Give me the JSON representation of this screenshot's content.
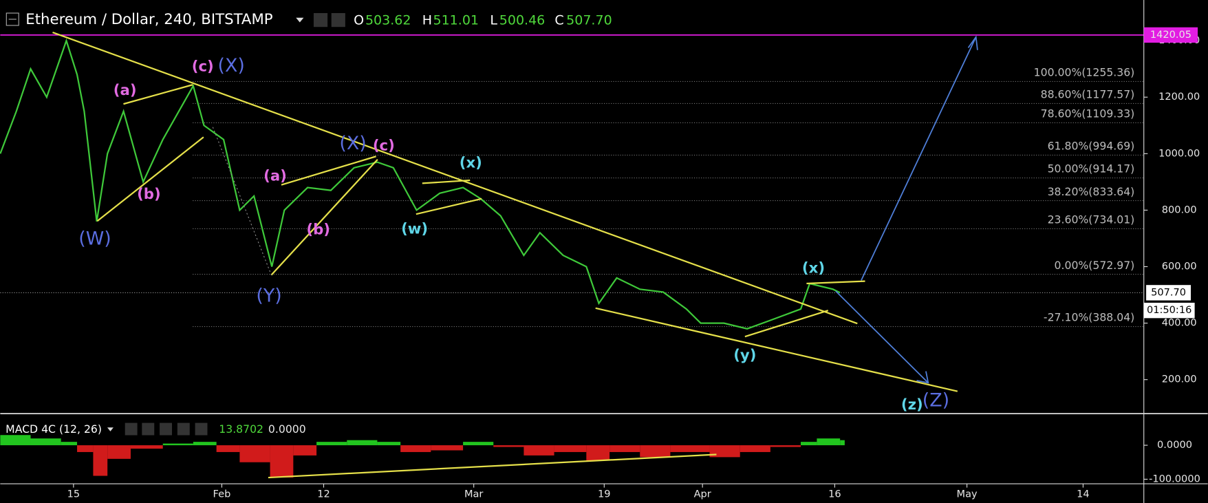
{
  "chart_data": {
    "type": "line",
    "header": {
      "symbol": "Ethereum / Dollar, 240, BITSTAMP",
      "open_label": "O",
      "open": "503.62",
      "high_label": "H",
      "high": "511.01",
      "low_label": "L",
      "low": "500.46",
      "close_label": "C",
      "close": "507.70"
    },
    "x": [
      0,
      9,
      17,
      26,
      37,
      43,
      47,
      54,
      60,
      69,
      80,
      91,
      108,
      114,
      125,
      134,
      142,
      152,
      159,
      172,
      185,
      198,
      211,
      220,
      233,
      246,
      259,
      269,
      280,
      293,
      302,
      315,
      328,
      335,
      345,
      358,
      371,
      384,
      392,
      405,
      418,
      431,
      448,
      453,
      466,
      470
    ],
    "series": [
      {
        "name": "ETHUSD",
        "color": "#3fc93a",
        "values": [
          1000,
          1150,
          1300,
          1200,
          1400,
          1280,
          1150,
          760,
          1000,
          1150,
          900,
          1050,
          1240,
          1100,
          1050,
          800,
          850,
          600,
          800,
          880,
          870,
          950,
          970,
          950,
          800,
          860,
          880,
          840,
          780,
          640,
          720,
          640,
          600,
          470,
          560,
          520,
          510,
          450,
          400,
          400,
          380,
          410,
          450,
          540,
          520,
          507.7
        ]
      }
    ],
    "xlim": [
      0,
      640
    ],
    "xticks": [
      {
        "value": 41,
        "label": "15"
      },
      {
        "value": 124,
        "label": "Feb"
      },
      {
        "value": 181,
        "label": "12"
      },
      {
        "value": 265,
        "label": "Mar"
      },
      {
        "value": 338,
        "label": "19"
      },
      {
        "value": 393,
        "label": "Apr"
      },
      {
        "value": 467,
        "label": "16"
      },
      {
        "value": 541,
        "label": "May"
      },
      {
        "value": 606,
        "label": "14"
      }
    ],
    "ylim": [
      85,
      1544
    ],
    "yticks": [
      {
        "value": 200,
        "label": "200.00"
      },
      {
        "value": 400,
        "label": "400.00"
      },
      {
        "value": 600,
        "label": "600.00"
      },
      {
        "value": 800,
        "label": "800.00"
      },
      {
        "value": 1000,
        "label": "1000.00"
      },
      {
        "value": 1200,
        "label": "1200.00"
      },
      {
        "value": 1400,
        "label": "1400.00"
      }
    ],
    "target_price": 1420.05,
    "target_color": "#e21de2",
    "last_price": {
      "value": 507.7,
      "label": "507.70"
    },
    "countdown": "01:50:16",
    "fib_levels": [
      {
        "value": 1255.36,
        "label": "100.00%(1255.36)"
      },
      {
        "value": 1177.57,
        "label": "88.60%(1177.57)"
      },
      {
        "value": 1109.33,
        "label": "78.60%(1109.33)"
      },
      {
        "value": 994.69,
        "label": "61.80%(994.69)"
      },
      {
        "value": 914.17,
        "label": "50.00%(914.17)"
      },
      {
        "value": 833.64,
        "label": "38.20%(833.64)"
      },
      {
        "value": 734.01,
        "label": "23.60%(734.01)"
      },
      {
        "value": 572.97,
        "label": "0.00%(572.97)"
      },
      {
        "value": 388.04,
        "label": "-27.10%(388.04)"
      }
    ],
    "wave_labels": [
      {
        "text": "(c)",
        "color": "#e26be2"
      },
      {
        "text": "(X)",
        "color": "#5b6ee1"
      },
      {
        "text": "(a)",
        "color": "#e26be2"
      },
      {
        "text": "(b)",
        "color": "#e26be2"
      },
      {
        "text": "(W)",
        "color": "#5b6ee1"
      },
      {
        "text": "(X)",
        "color": "#5b6ee1"
      },
      {
        "text": "(c)",
        "color": "#e26be2"
      },
      {
        "text": "(a)",
        "color": "#e26be2"
      },
      {
        "text": "(b)",
        "color": "#e26be2"
      },
      {
        "text": "(Y)",
        "color": "#5b6ee1"
      },
      {
        "text": "(x)",
        "color": "#5fd6e8"
      },
      {
        "text": "(w)",
        "color": "#5fd6e8"
      },
      {
        "text": "(x)",
        "color": "#5fd6e8"
      },
      {
        "text": "(y)",
        "color": "#5fd6e8"
      },
      {
        "text": "(z)",
        "color": "#5fd6e8"
      },
      {
        "text": "(Z)",
        "color": "#5b6ee1"
      }
    ],
    "macd": {
      "title": "MACD 4C (12, 26)",
      "value": "13.8702",
      "signal": "0.0000",
      "up_color": "#22c51f",
      "down_color": "#d11b1b",
      "x": [
        0,
        17,
        34,
        43,
        52,
        60,
        73,
        91,
        108,
        121,
        134,
        151,
        164,
        177,
        194,
        211,
        224,
        241,
        259,
        276,
        293,
        310,
        328,
        341,
        358,
        375,
        397,
        414,
        431,
        448,
        457,
        470
      ],
      "values": [
        30,
        20,
        10,
        -20,
        -90,
        -40,
        -10,
        5,
        10,
        -20,
        -50,
        -95,
        -30,
        10,
        15,
        10,
        -20,
        -15,
        10,
        -5,
        -30,
        -20,
        -45,
        -20,
        -35,
        -20,
        -35,
        -20,
        -5,
        10,
        20,
        15
      ],
      "ylim": [
        -111,
        93
      ],
      "yticks": [
        {
          "value": 0,
          "label": "0.0000"
        },
        {
          "value": -100,
          "label": "-100.0000"
        }
      ]
    }
  }
}
